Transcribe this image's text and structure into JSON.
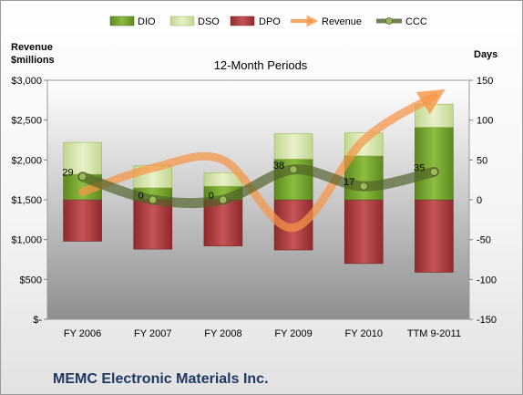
{
  "chart_data": {
    "type": "bar",
    "title": "12-Month Periods",
    "footer_title": "MEMC Electronic Materials Inc.",
    "left_axis_label": [
      "Revenue",
      "$millions"
    ],
    "right_axis_label": "Days",
    "categories": [
      "FY 2006",
      "FY 2007",
      "FY 2008",
      "FY 2009",
      "FY 2010",
      "TTM 9-2011"
    ],
    "left_axis": {
      "min": 0,
      "max": 3000,
      "ticks": [
        "$-",
        "$500",
        "$1,000",
        "$1,500",
        "$2,000",
        "$2,500",
        "$3,000"
      ]
    },
    "right_axis": {
      "min": -150,
      "max": 150,
      "ticks": [
        "-150",
        "-100",
        "-50",
        "0",
        "50",
        "100",
        "150"
      ]
    },
    "series": [
      {
        "name": "DIO",
        "kind": "stacked-bar-days",
        "values": [
          32,
          15,
          17,
          51,
          55,
          91
        ]
      },
      {
        "name": "DSO",
        "kind": "stacked-bar-days",
        "values": [
          40,
          28,
          17,
          32,
          29,
          29
        ]
      },
      {
        "name": "DPO",
        "kind": "negative-bar-days",
        "values": [
          -52,
          -62,
          -58,
          -63,
          -80,
          -91
        ]
      },
      {
        "name": "Revenue",
        "kind": "line-millions",
        "values": [
          1600,
          1900,
          2000,
          1150,
          2250,
          2800
        ]
      },
      {
        "name": "CCC",
        "kind": "line-days",
        "values": [
          29,
          0,
          0,
          38,
          17,
          35
        ],
        "labels": [
          "29",
          "0",
          "0",
          "38",
          "17",
          "35"
        ]
      }
    ],
    "colors": {
      "DIO": "#77a22f",
      "DSO": "#d7e6a8",
      "DPO": "#b73a3c",
      "Revenue": "#f79646",
      "CCC": "#4f6228"
    },
    "legend_position": "top",
    "grid": false
  }
}
